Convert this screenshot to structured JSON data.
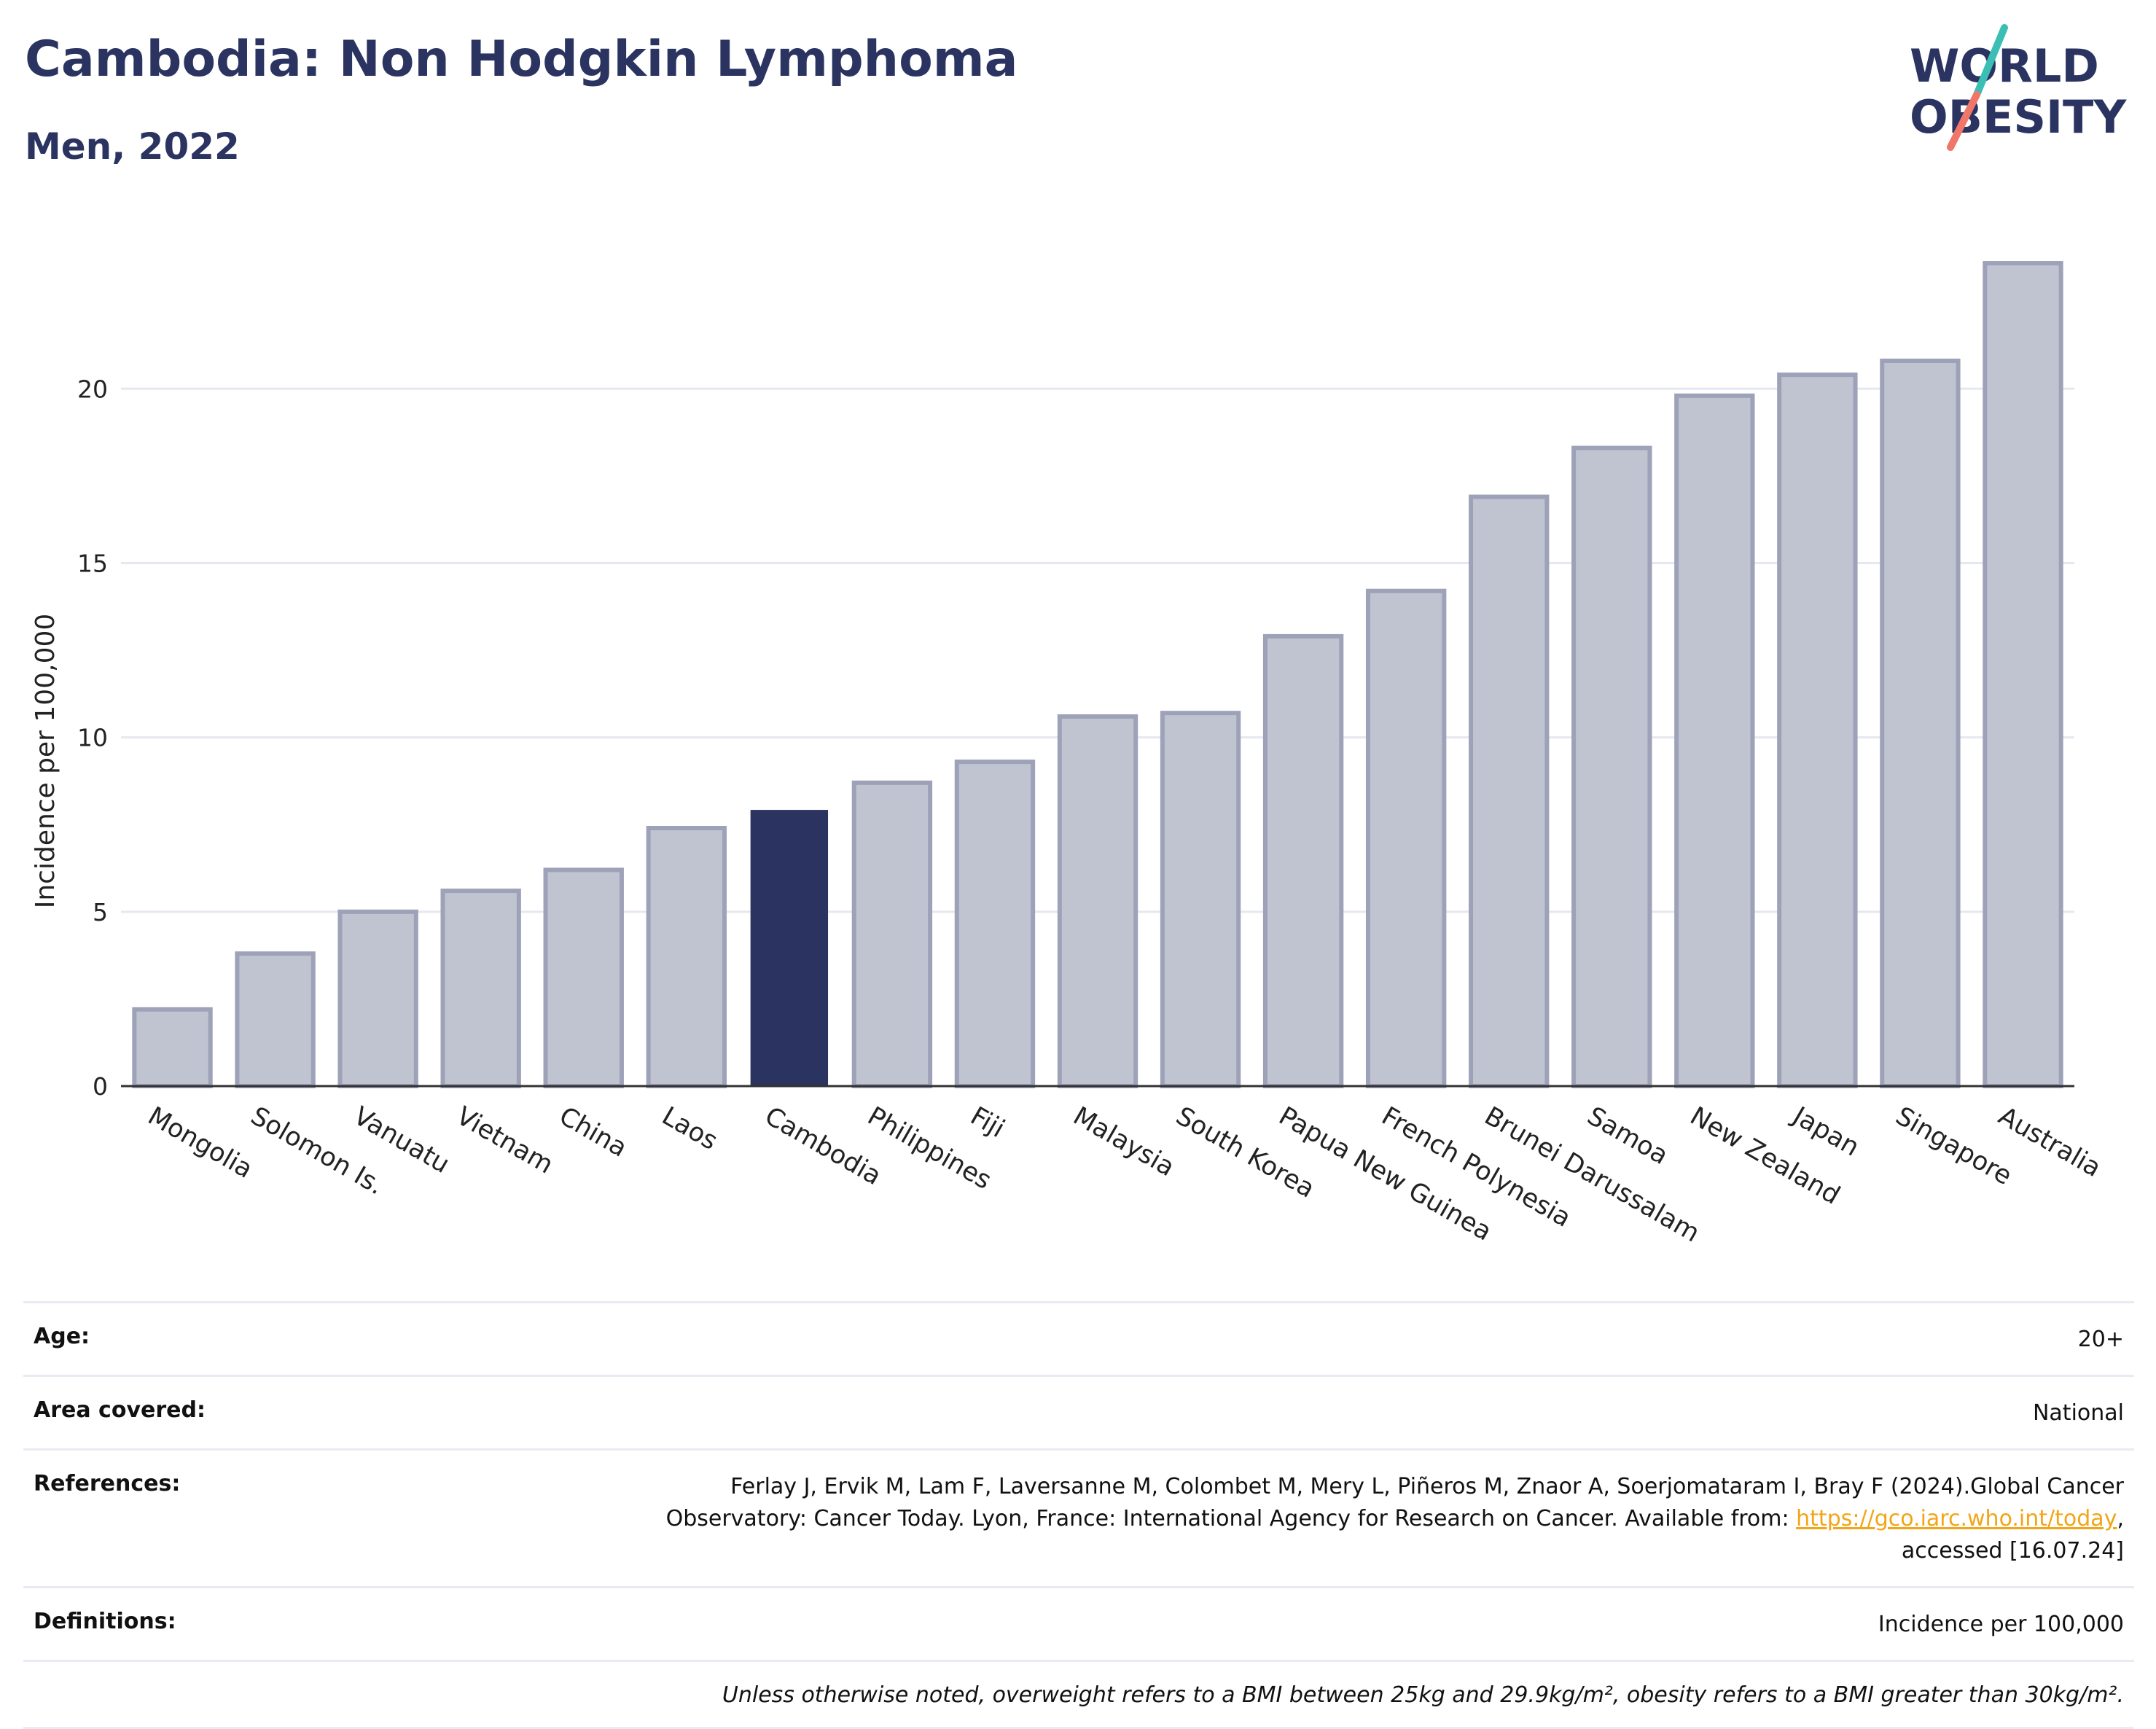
{
  "title": "Cambodia: Non Hodgkin Lymphoma",
  "subtitle": "Men, 2022",
  "logo": {
    "line1": "WORLD",
    "line2": "OBESITY"
  },
  "colors": {
    "highlight_bar": "#2b3461",
    "default_bar": "#c0c3d0",
    "default_bar_border": "#9ea2b8",
    "title": "#2b3461",
    "grid": "#e6e8f0",
    "link": "#f2a516",
    "logo_teal": "#3bbfb4",
    "logo_coral": "#f0766a"
  },
  "chart_data": {
    "type": "bar",
    "categories": [
      "Mongolia",
      "Solomon Is.",
      "Vanuatu",
      "Vietnam",
      "China",
      "Laos",
      "Cambodia",
      "Philippines",
      "Fiji",
      "Malaysia",
      "South Korea",
      "Papua New Guinea",
      "French Polynesia",
      "Brunei Darussalam",
      "Samoa",
      "New Zealand",
      "Japan",
      "Singapore",
      "Australia"
    ],
    "values": [
      2.2,
      3.8,
      5.0,
      5.6,
      6.2,
      7.4,
      7.9,
      8.7,
      9.3,
      10.6,
      10.7,
      12.9,
      14.2,
      16.9,
      18.3,
      19.8,
      20.4,
      20.8,
      23.6
    ],
    "highlight": "Cambodia",
    "xlabel": "",
    "ylabel": "Incidence per 100,000",
    "ylim": [
      0,
      24.5
    ],
    "yticks": [
      0,
      5,
      10,
      15,
      20
    ],
    "grid": true
  },
  "info": {
    "age": {
      "label": "Age:",
      "value": "20+"
    },
    "area": {
      "label": "Area covered:",
      "value": "National"
    },
    "references": {
      "label": "References:",
      "line1": "Ferlay J, Ervik M, Lam F, Laversanne M, Colombet M, Mery L, Piñeros M, Znaor A, Soerjomataram I, Bray F (2024).Global Cancer",
      "line2_prefix": "Observatory: Cancer Today. Lyon, France: International Agency for Research on Cancer. Available from: ",
      "link": "https://gco.iarc.who.int/today",
      "line2_suffix": ",",
      "line3": "accessed [16.07.24]"
    },
    "definitions": {
      "label": "Definitions:",
      "value": "Incidence per 100,000"
    },
    "note": "Unless otherwise noted, overweight refers to a BMI between 25kg and 29.9kg/m², obesity refers to a BMI greater than 30kg/m²."
  }
}
